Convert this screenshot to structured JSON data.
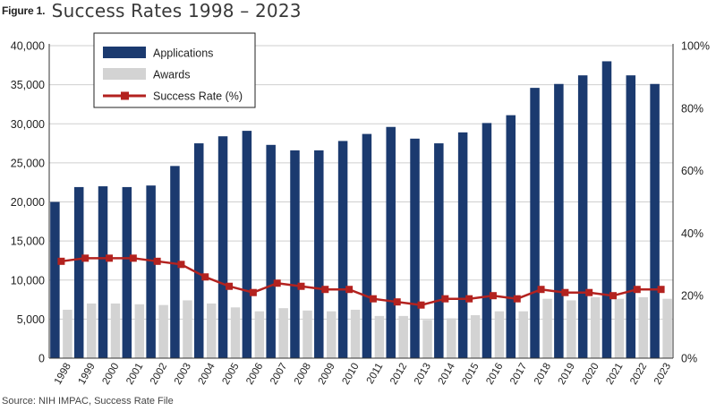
{
  "figure": {
    "label": "Figure 1.",
    "title": "Success Rates 1998 – 2023",
    "source": "Source: NIH IMPAC, Success Rate File"
  },
  "colors": {
    "applications": "#1b3a6f",
    "awards": "#d3d3d3",
    "success_rate": "#b3221f",
    "gridline": "#cfcfcf"
  },
  "chart_data": {
    "type": "bar",
    "title": "Success Rates 1998 – 2023",
    "categories": [
      "1998",
      "1999",
      "2000",
      "2001",
      "2002",
      "2003",
      "2004",
      "2005",
      "2006",
      "2007",
      "2008",
      "2009",
      "2010",
      "2011",
      "2012",
      "2013",
      "2014",
      "2015",
      "2016",
      "2017",
      "2018",
      "2019",
      "2020",
      "2021",
      "2022",
      "2023"
    ],
    "series": [
      {
        "name": "Applications",
        "type": "bar",
        "axis": "left",
        "values": [
          20000,
          21900,
          22000,
          21900,
          22100,
          24600,
          27500,
          28400,
          29100,
          27300,
          26600,
          26600,
          27800,
          28700,
          29600,
          28100,
          27500,
          28900,
          30100,
          31100,
          34600,
          35100,
          36200,
          38000,
          36200,
          35100
        ]
      },
      {
        "name": "Awards",
        "type": "bar",
        "axis": "left",
        "values": [
          6200,
          7000,
          7000,
          6900,
          6800,
          7400,
          7000,
          6500,
          6000,
          6400,
          6100,
          6000,
          6200,
          5400,
          5400,
          4900,
          5100,
          5500,
          6000,
          6000,
          7600,
          7400,
          7800,
          7600,
          7800,
          7600
        ]
      },
      {
        "name": "Success Rate (%)",
        "type": "line",
        "axis": "right",
        "values": [
          31,
          32,
          32,
          32,
          31,
          30,
          26,
          23,
          21,
          24,
          23,
          22,
          22,
          19,
          18,
          17,
          19,
          19,
          20,
          19,
          22,
          21,
          21,
          20,
          22,
          22
        ]
      }
    ],
    "y_left": {
      "range": [
        0,
        40000
      ],
      "ticks": [
        "0",
        "5,000",
        "10,000",
        "15,000",
        "20,000",
        "25,000",
        "30,000",
        "35,000",
        "40,000"
      ]
    },
    "y_right": {
      "range": [
        0,
        100
      ],
      "ticks": [
        "0%",
        "20%",
        "40%",
        "60%",
        "80%",
        "100%"
      ]
    },
    "grid": "horizontal",
    "legend_position": "top-left"
  }
}
